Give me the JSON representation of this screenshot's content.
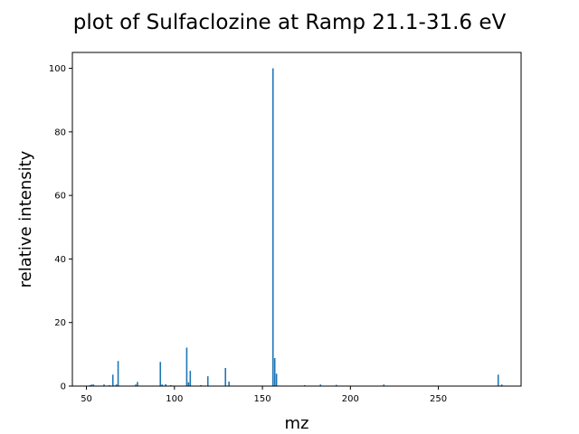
{
  "chart_data": {
    "type": "bar",
    "title": "plot of Sulfaclozine at Ramp 21.1-31.6 eV",
    "xlabel": "mz",
    "ylabel": "relative intensity",
    "xlim": [
      42,
      297
    ],
    "ylim": [
      0,
      105
    ],
    "xticks": [
      50,
      100,
      150,
      200,
      250
    ],
    "yticks": [
      0,
      20,
      40,
      60,
      80,
      100
    ],
    "grid": false,
    "bar_color": "#1f77b4",
    "x": [
      52,
      53,
      54,
      60,
      63,
      65,
      67,
      68,
      78,
      79,
      92,
      93,
      95,
      98,
      107,
      108,
      109,
      115,
      119,
      129,
      131,
      156,
      157,
      158,
      174,
      183,
      192,
      219,
      284,
      286
    ],
    "values": [
      0.3,
      0.5,
      0.5,
      0.5,
      0.3,
      3.6,
      0.5,
      7.9,
      0.5,
      1.3,
      7.6,
      0.5,
      0.6,
      0.3,
      12.1,
      1.2,
      4.8,
      0.3,
      3.1,
      5.7,
      1.4,
      100,
      8.8,
      3.9,
      0.3,
      0.5,
      0.4,
      0.5,
      3.6,
      0.5
    ]
  }
}
